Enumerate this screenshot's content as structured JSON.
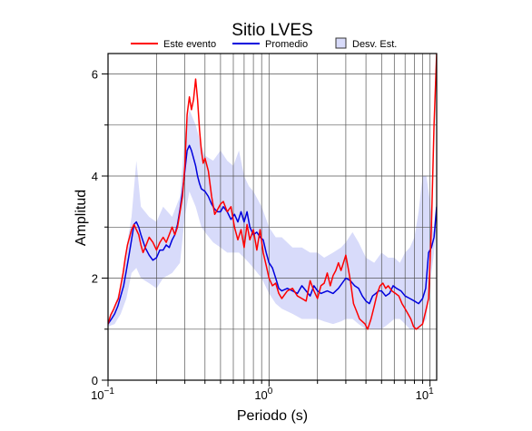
{
  "chart_data": {
    "type": "line",
    "title": "Sitio LVES",
    "xlabel": "Periodo (s)",
    "ylabel": "Amplitud",
    "x_scale": "log",
    "xlim": [
      0.1,
      11
    ],
    "ylim": [
      0,
      6.4
    ],
    "x_ticks": [
      {
        "value": 0.1,
        "base": "10",
        "exp": "−1"
      },
      {
        "value": 1,
        "base": "10",
        "exp": "0"
      },
      {
        "value": 10,
        "base": "10",
        "exp": "1"
      }
    ],
    "y_ticks": [
      0,
      2,
      4,
      6
    ],
    "grid": true,
    "legend_position": "top",
    "colors": {
      "event": "#ff0000",
      "mean": "#0000dd",
      "band": "#d8dbfa",
      "band_edge": "#333333"
    },
    "series": [
      {
        "name": "Este evento",
        "color": "#ff0000",
        "points": [
          [
            0.1,
            1.1
          ],
          [
            0.104,
            1.28
          ],
          [
            0.108,
            1.38
          ],
          [
            0.112,
            1.5
          ],
          [
            0.116,
            1.6
          ],
          [
            0.12,
            1.85
          ],
          [
            0.124,
            2.1
          ],
          [
            0.128,
            2.4
          ],
          [
            0.132,
            2.65
          ],
          [
            0.136,
            2.8
          ],
          [
            0.14,
            2.95
          ],
          [
            0.145,
            3.05
          ],
          [
            0.15,
            2.95
          ],
          [
            0.155,
            2.85
          ],
          [
            0.16,
            2.65
          ],
          [
            0.165,
            2.5
          ],
          [
            0.17,
            2.6
          ],
          [
            0.18,
            2.8
          ],
          [
            0.19,
            2.7
          ],
          [
            0.2,
            2.55
          ],
          [
            0.21,
            2.7
          ],
          [
            0.22,
            2.8
          ],
          [
            0.23,
            2.7
          ],
          [
            0.24,
            2.85
          ],
          [
            0.25,
            3.0
          ],
          [
            0.26,
            2.85
          ],
          [
            0.27,
            3.0
          ],
          [
            0.28,
            3.3
          ],
          [
            0.29,
            3.6
          ],
          [
            0.3,
            4.2
          ],
          [
            0.31,
            5.2
          ],
          [
            0.32,
            5.55
          ],
          [
            0.33,
            5.3
          ],
          [
            0.34,
            5.5
          ],
          [
            0.35,
            5.9
          ],
          [
            0.36,
            5.5
          ],
          [
            0.37,
            4.9
          ],
          [
            0.38,
            4.5
          ],
          [
            0.39,
            4.25
          ],
          [
            0.4,
            4.35
          ],
          [
            0.42,
            4.1
          ],
          [
            0.44,
            3.6
          ],
          [
            0.46,
            3.25
          ],
          [
            0.48,
            3.35
          ],
          [
            0.5,
            3.45
          ],
          [
            0.52,
            3.5
          ],
          [
            0.55,
            3.3
          ],
          [
            0.58,
            3.4
          ],
          [
            0.61,
            3.0
          ],
          [
            0.64,
            2.75
          ],
          [
            0.67,
            2.95
          ],
          [
            0.7,
            2.6
          ],
          [
            0.73,
            3.05
          ],
          [
            0.76,
            2.75
          ],
          [
            0.8,
            2.95
          ],
          [
            0.84,
            2.55
          ],
          [
            0.88,
            2.95
          ],
          [
            0.92,
            2.5
          ],
          [
            0.96,
            2.25
          ],
          [
            1.0,
            2.0
          ],
          [
            1.05,
            1.85
          ],
          [
            1.1,
            1.9
          ],
          [
            1.15,
            1.7
          ],
          [
            1.2,
            1.6
          ],
          [
            1.3,
            1.75
          ],
          [
            1.4,
            1.8
          ],
          [
            1.5,
            1.65
          ],
          [
            1.6,
            1.6
          ],
          [
            1.7,
            1.55
          ],
          [
            1.8,
            1.95
          ],
          [
            1.9,
            1.75
          ],
          [
            2.0,
            1.6
          ],
          [
            2.1,
            1.85
          ],
          [
            2.2,
            1.9
          ],
          [
            2.3,
            2.1
          ],
          [
            2.4,
            1.85
          ],
          [
            2.5,
            2.05
          ],
          [
            2.6,
            2.15
          ],
          [
            2.7,
            2.3
          ],
          [
            2.8,
            2.15
          ],
          [
            2.9,
            2.3
          ],
          [
            3.0,
            2.45
          ],
          [
            3.1,
            2.2
          ],
          [
            3.2,
            1.95
          ],
          [
            3.35,
            1.5
          ],
          [
            3.5,
            1.35
          ],
          [
            3.65,
            1.2
          ],
          [
            3.8,
            1.15
          ],
          [
            3.95,
            1.1
          ],
          [
            4.1,
            1.0
          ],
          [
            4.3,
            1.2
          ],
          [
            4.5,
            1.45
          ],
          [
            4.7,
            1.7
          ],
          [
            4.9,
            1.85
          ],
          [
            5.1,
            1.9
          ],
          [
            5.3,
            1.8
          ],
          [
            5.5,
            1.85
          ],
          [
            5.8,
            1.75
          ],
          [
            6.1,
            1.7
          ],
          [
            6.4,
            1.65
          ],
          [
            6.7,
            1.5
          ],
          [
            7.0,
            1.4
          ],
          [
            7.3,
            1.3
          ],
          [
            7.6,
            1.2
          ],
          [
            7.9,
            1.05
          ],
          [
            8.2,
            1.0
          ],
          [
            8.6,
            1.05
          ],
          [
            9.0,
            1.1
          ],
          [
            9.4,
            1.35
          ],
          [
            9.8,
            1.6
          ],
          [
            10.2,
            3.0
          ],
          [
            10.6,
            5.0
          ],
          [
            11.0,
            6.4
          ]
        ]
      },
      {
        "name": "Promedio",
        "color": "#0000dd",
        "points": [
          [
            0.1,
            1.1
          ],
          [
            0.105,
            1.2
          ],
          [
            0.11,
            1.3
          ],
          [
            0.115,
            1.45
          ],
          [
            0.12,
            1.65
          ],
          [
            0.125,
            1.85
          ],
          [
            0.13,
            2.15
          ],
          [
            0.135,
            2.45
          ],
          [
            0.14,
            2.75
          ],
          [
            0.145,
            3.05
          ],
          [
            0.15,
            3.1
          ],
          [
            0.155,
            3.0
          ],
          [
            0.16,
            2.85
          ],
          [
            0.17,
            2.6
          ],
          [
            0.18,
            2.45
          ],
          [
            0.19,
            2.35
          ],
          [
            0.2,
            2.4
          ],
          [
            0.21,
            2.55
          ],
          [
            0.22,
            2.55
          ],
          [
            0.23,
            2.65
          ],
          [
            0.24,
            2.6
          ],
          [
            0.25,
            2.75
          ],
          [
            0.26,
            2.85
          ],
          [
            0.27,
            3.05
          ],
          [
            0.28,
            3.35
          ],
          [
            0.29,
            3.7
          ],
          [
            0.3,
            4.1
          ],
          [
            0.31,
            4.5
          ],
          [
            0.32,
            4.6
          ],
          [
            0.33,
            4.5
          ],
          [
            0.34,
            4.35
          ],
          [
            0.35,
            4.2
          ],
          [
            0.36,
            4.0
          ],
          [
            0.37,
            3.85
          ],
          [
            0.38,
            3.75
          ],
          [
            0.4,
            3.7
          ],
          [
            0.42,
            3.6
          ],
          [
            0.44,
            3.45
          ],
          [
            0.46,
            3.35
          ],
          [
            0.48,
            3.3
          ],
          [
            0.5,
            3.3
          ],
          [
            0.52,
            3.4
          ],
          [
            0.55,
            3.3
          ],
          [
            0.58,
            3.15
          ],
          [
            0.61,
            3.25
          ],
          [
            0.64,
            3.1
          ],
          [
            0.67,
            3.3
          ],
          [
            0.7,
            3.1
          ],
          [
            0.73,
            3.3
          ],
          [
            0.76,
            3.0
          ],
          [
            0.8,
            2.85
          ],
          [
            0.84,
            2.9
          ],
          [
            0.88,
            2.8
          ],
          [
            0.92,
            2.75
          ],
          [
            0.96,
            2.5
          ],
          [
            1.0,
            2.3
          ],
          [
            1.05,
            2.2
          ],
          [
            1.1,
            2.0
          ],
          [
            1.15,
            1.8
          ],
          [
            1.2,
            1.75
          ],
          [
            1.3,
            1.8
          ],
          [
            1.4,
            1.75
          ],
          [
            1.5,
            1.7
          ],
          [
            1.6,
            1.85
          ],
          [
            1.7,
            1.75
          ],
          [
            1.8,
            1.65
          ],
          [
            1.9,
            1.85
          ],
          [
            2.0,
            1.75
          ],
          [
            2.1,
            1.7
          ],
          [
            2.3,
            1.75
          ],
          [
            2.5,
            1.7
          ],
          [
            2.7,
            1.8
          ],
          [
            3.0,
            2.0
          ],
          [
            3.2,
            1.95
          ],
          [
            3.4,
            1.85
          ],
          [
            3.6,
            1.8
          ],
          [
            3.8,
            1.65
          ],
          [
            4.0,
            1.55
          ],
          [
            4.2,
            1.5
          ],
          [
            4.4,
            1.65
          ],
          [
            4.6,
            1.7
          ],
          [
            4.8,
            1.75
          ],
          [
            5.0,
            1.75
          ],
          [
            5.3,
            1.65
          ],
          [
            5.6,
            1.7
          ],
          [
            5.9,
            1.85
          ],
          [
            6.2,
            1.8
          ],
          [
            6.6,
            1.75
          ],
          [
            7.0,
            1.65
          ],
          [
            7.5,
            1.6
          ],
          [
            8.0,
            1.55
          ],
          [
            8.5,
            1.5
          ],
          [
            9.0,
            1.6
          ],
          [
            9.4,
            1.8
          ],
          [
            9.8,
            2.5
          ],
          [
            10.2,
            2.6
          ],
          [
            10.6,
            2.8
          ],
          [
            11.0,
            3.4
          ]
        ]
      },
      {
        "name": "Desv. Est.",
        "type": "band",
        "x": [
          0.1,
          0.11,
          0.12,
          0.13,
          0.14,
          0.15,
          0.16,
          0.18,
          0.2,
          0.22,
          0.25,
          0.28,
          0.3,
          0.32,
          0.35,
          0.38,
          0.4,
          0.45,
          0.5,
          0.55,
          0.6,
          0.65,
          0.7,
          0.75,
          0.8,
          0.9,
          1.0,
          1.1,
          1.2,
          1.4,
          1.6,
          1.8,
          2.0,
          2.2,
          2.5,
          2.8,
          3.0,
          3.3,
          3.6,
          4.0,
          4.5,
          5.0,
          5.5,
          6.0,
          6.5,
          7.0,
          7.5,
          8.0,
          8.5,
          9.0,
          9.5,
          10.0,
          10.5,
          11.0
        ],
        "upper": [
          1.2,
          1.45,
          1.85,
          2.6,
          3.2,
          4.3,
          3.4,
          3.2,
          3.1,
          3.4,
          3.2,
          3.6,
          4.8,
          5.3,
          5.0,
          4.6,
          4.4,
          4.3,
          4.5,
          4.3,
          4.2,
          4.5,
          4.0,
          3.8,
          3.7,
          3.4,
          3.0,
          2.8,
          2.8,
          2.6,
          2.6,
          2.5,
          2.5,
          2.4,
          2.5,
          2.6,
          2.7,
          2.9,
          2.7,
          2.4,
          2.3,
          2.5,
          2.4,
          2.4,
          2.3,
          2.5,
          2.6,
          2.8,
          3.3,
          4.0,
          4.0,
          3.5,
          2.9,
          3.6
        ],
        "lower": [
          1.05,
          1.1,
          1.3,
          1.6,
          2.1,
          2.2,
          2.0,
          1.9,
          1.8,
          2.0,
          2.1,
          2.3,
          3.2,
          3.7,
          3.4,
          3.0,
          2.9,
          2.7,
          2.6,
          2.5,
          2.5,
          2.5,
          2.4,
          2.3,
          2.2,
          2.0,
          1.7,
          1.5,
          1.4,
          1.3,
          1.2,
          1.2,
          1.2,
          1.15,
          1.1,
          1.15,
          1.2,
          1.2,
          1.1,
          1.0,
          1.0,
          1.0,
          1.1,
          1.2,
          1.2,
          1.1,
          1.0,
          1.0,
          1.0,
          1.1,
          1.2,
          1.9,
          2.4,
          3.0
        ]
      }
    ]
  }
}
